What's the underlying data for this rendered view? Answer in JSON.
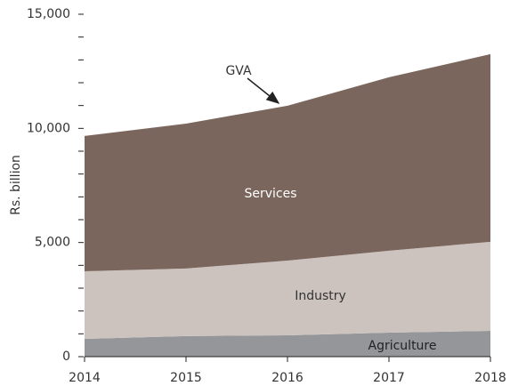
{
  "chart_data": {
    "type": "stacked_area",
    "y_label": "Rs. billion",
    "x": [
      2014,
      2015,
      2016,
      2017,
      2018
    ],
    "xlim": [
      2014,
      2018
    ],
    "xticks": [
      2014,
      2015,
      2016,
      2017,
      2018
    ],
    "ylim": [
      0,
      15000
    ],
    "yticks": [
      {
        "value": 0,
        "label": "0"
      },
      {
        "value": 5000,
        "label": "5,000"
      },
      {
        "value": 10000,
        "label": "10,000"
      },
      {
        "value": 15000,
        "label": "15,000"
      }
    ],
    "yticks_minor": [
      1000,
      2000,
      3000,
      4000,
      6000,
      7000,
      8000,
      9000,
      11000,
      12000,
      13000,
      14000
    ],
    "series": [
      {
        "name": "Agriculture",
        "color": "#94969a",
        "values": [
          780,
          900,
          935,
          1050,
          1130
        ]
      },
      {
        "name": "Industry",
        "color": "#ccc3bf",
        "values": [
          2960,
          2960,
          3275,
          3590,
          3900
        ]
      },
      {
        "name": "Services",
        "color": "#7a665c",
        "values": [
          5925,
          6350,
          6780,
          7600,
          8220
        ]
      }
    ],
    "annotation": "GVA"
  }
}
